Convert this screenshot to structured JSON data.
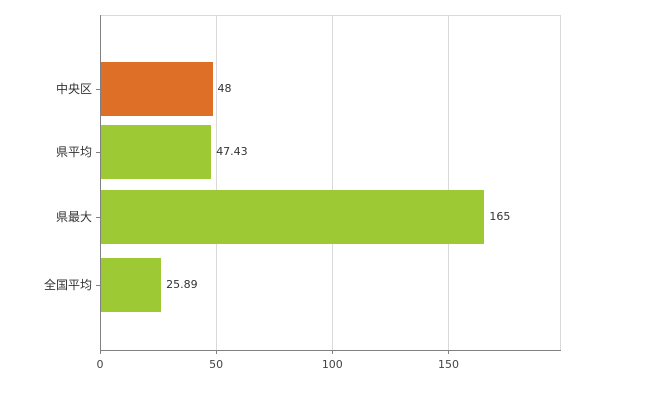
{
  "chart_data": {
    "type": "bar",
    "orientation": "horizontal",
    "title": "",
    "xlabel": "",
    "ylabel": "",
    "categories": [
      "中央区",
      "県平均",
      "県最大",
      "全国平均"
    ],
    "values": [
      48,
      47.43,
      165,
      25.89
    ],
    "value_labels": [
      "48",
      "47.43",
      "165",
      "25.89"
    ],
    "bar_colors": [
      "#dd7026",
      "#9dca34",
      "#9dca34",
      "#9dca34"
    ],
    "x_ticks": [
      0,
      50,
      100,
      150
    ],
    "x_tick_labels": [
      "0",
      "50",
      "100",
      "150"
    ],
    "xlim": [
      0,
      198
    ],
    "grid": true,
    "legend": "none"
  },
  "colors": {
    "background": "#ffffff",
    "axis": "#808080",
    "gridline": "#d9d9d9",
    "orange_bar": "#dd7026",
    "green_bar": "#9dca34",
    "label_text": "#333333",
    "tick_text": "#444444"
  }
}
